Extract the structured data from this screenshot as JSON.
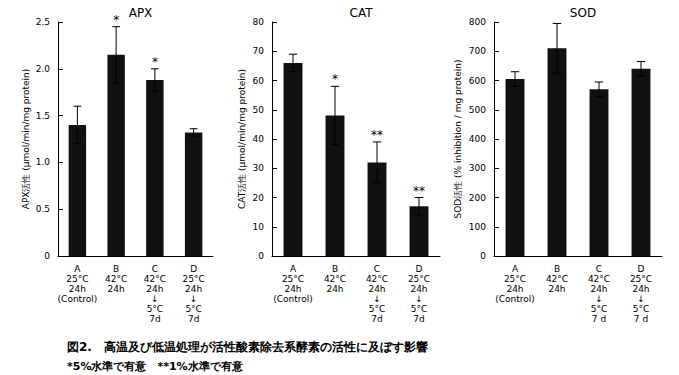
{
  "chart_data": [
    {
      "type": "bar",
      "title": "APX",
      "y_label": "APX活性 (μmol/min/mg protein)",
      "categories": [
        "A\n25°C\n24h\n(Control)",
        "B\n42°C\n24h",
        "C\n42°C\n24h\n↓\n5°C\n7d",
        "D\n25°C\n24h\n↓\n5°C\n7d"
      ],
      "values": [
        1.4,
        2.15,
        1.88,
        1.32
      ],
      "errors": [
        0.2,
        0.3,
        0.12,
        0.04
      ],
      "annotations": [
        null,
        "*",
        "*",
        null
      ],
      "color": "#111111",
      "ylim": [
        0,
        2.5
      ],
      "yticks": [
        0,
        0.5,
        {
          "value": 1,
          "label": "1.0"
        },
        1.5,
        {
          "value": 2,
          "label": "2.0"
        },
        2.5
      ],
      "grid": false
    },
    {
      "type": "bar",
      "title": "CAT",
      "y_label": "CAT活性 (μmol/min/mg protein)",
      "categories": [
        "A\n25°C\n24h\n(Control)",
        "B\n42°C\n24h",
        "C\n42°C\n24h\n↓\n5°C\n7d",
        "D\n25°C\n24h\n↓\n5°C\n7d"
      ],
      "values": [
        66,
        48,
        32,
        17
      ],
      "errors": [
        3,
        10,
        7,
        3
      ],
      "annotations": [
        null,
        "*",
        "**",
        "**"
      ],
      "color": "#111111",
      "ylim": [
        0,
        80
      ],
      "yticks": [
        0,
        10,
        20,
        30,
        40,
        50,
        60,
        70,
        80
      ],
      "grid": false
    },
    {
      "type": "bar",
      "title": "SOD",
      "y_label": "SOD活性 (% inhibition / mg protein)",
      "categories": [
        "A\n25°C\n24h\n(Control)",
        "B\n42°C\n24h",
        "C\n42°C\n24h\n↓\n5°C\n7 d",
        "D\n25°C\n24h\n↓\n5°C\n7 d"
      ],
      "values": [
        605,
        710,
        570,
        640
      ],
      "errors": [
        25,
        85,
        25,
        25
      ],
      "annotations": [
        null,
        null,
        null,
        null
      ],
      "color": "#111111",
      "ylim": [
        0,
        800
      ],
      "yticks": [
        0,
        100,
        200,
        300,
        400,
        500,
        600,
        700,
        800
      ],
      "grid": false
    }
  ],
  "caption": "図2.　高温及び低温処理が活性酸素除去系酵素の活性に及ぼす影響",
  "footnote": "*5%水準で有意　**1%水準で有意"
}
